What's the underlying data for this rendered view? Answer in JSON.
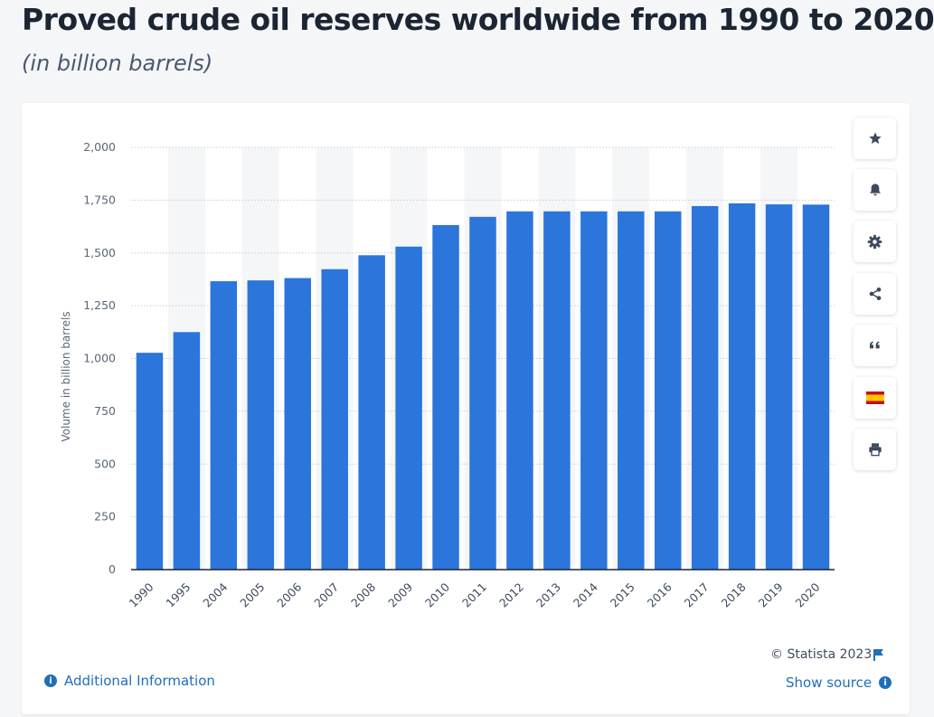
{
  "title": "Proved crude oil reserves worldwide from 1990 to 2020",
  "subtitle": "(in billion barrels)",
  "chart_data": {
    "type": "bar",
    "categories": [
      "1990",
      "1995",
      "2004",
      "2005",
      "2006",
      "2007",
      "2008",
      "2009",
      "2010",
      "2011",
      "2012",
      "2013",
      "2014",
      "2015",
      "2016",
      "2017",
      "2018",
      "2019",
      "2020"
    ],
    "values": [
      1027,
      1125,
      1366,
      1370,
      1381,
      1423,
      1489,
      1530,
      1632,
      1671,
      1697,
      1697,
      1697,
      1697,
      1697,
      1722,
      1735,
      1730,
      1729
    ],
    "ylabel": "Volume in billion barrels",
    "xlabel": "",
    "ylim": [
      0,
      2000
    ],
    "yticks": [
      0,
      250,
      500,
      750,
      1000,
      1250,
      1500,
      1750,
      2000
    ],
    "ytick_labels": [
      "0",
      "250",
      "500",
      "750",
      "1,000",
      "1,250",
      "1,500",
      "1,750",
      "2,000"
    ],
    "grid": true,
    "bar_color": "#2b75db",
    "band_color": "#f5f6f8"
  },
  "toolbar": {
    "buttons": [
      {
        "name": "star-icon"
      },
      {
        "name": "bell-icon"
      },
      {
        "name": "gear-icon"
      },
      {
        "name": "share-icon"
      },
      {
        "name": "quote-icon"
      },
      {
        "name": "spain-flag-icon"
      },
      {
        "name": "print-icon"
      }
    ]
  },
  "footer": {
    "copyright": "© Statista 2023",
    "additional_info": "Additional Information",
    "show_source": "Show source"
  },
  "colors": {
    "accent": "#1f6fb8",
    "title": "#1b2533"
  }
}
